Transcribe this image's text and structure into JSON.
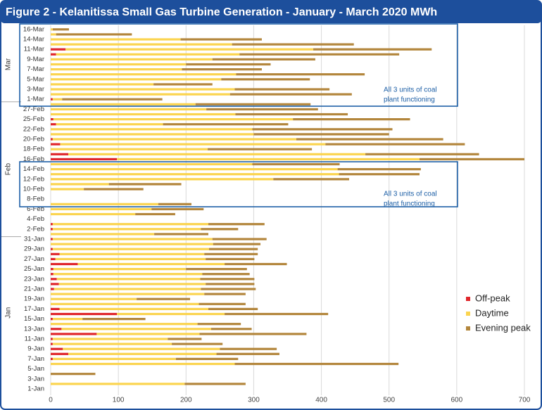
{
  "chart_data": {
    "type": "stacked-hbar",
    "title": "Figure 2 - Kelanitissa Small Gas Turbine Generation - January - March 2020 MWh",
    "categories": [
      "1-Jan",
      null,
      "3-Jan",
      null,
      "5-Jan",
      null,
      "7-Jan",
      null,
      "9-Jan",
      null,
      "11-Jan",
      null,
      "13-Jan",
      null,
      "15-Jan",
      null,
      "17-Jan",
      null,
      "19-Jan",
      null,
      "21-Jan",
      null,
      "23-Jan",
      null,
      "25-Jan",
      null,
      "27-Jan",
      null,
      "29-Jan",
      null,
      "31-Jan",
      null,
      "2-Feb",
      null,
      "4-Feb",
      null,
      "6-Feb",
      null,
      "8-Feb",
      null,
      "10-Feb",
      null,
      "12-Feb",
      null,
      "14-Feb",
      null,
      "16-Feb",
      null,
      "18-Feb",
      null,
      "20-Feb",
      null,
      "22-Feb",
      null,
      "25-Feb",
      null,
      "27-Feb",
      null,
      "1-Mar",
      null,
      "3-Mar",
      null,
      "5-Mar",
      null,
      "7-Mar",
      null,
      "9-Mar",
      null,
      "11-Mar",
      null,
      "14-Mar",
      null,
      "16-Mar"
    ],
    "group_labels": [
      "Jan",
      "Feb",
      "Mar"
    ],
    "series": [
      {
        "name": "Off-peak",
        "color": "#e0262b",
        "values": [
          0,
          0,
          0,
          0,
          0,
          0,
          3,
          26,
          18,
          3,
          3,
          68,
          16,
          0,
          3,
          98,
          13,
          0,
          0,
          0,
          5,
          12,
          9,
          4,
          4,
          40,
          7,
          13,
          3,
          0,
          3,
          0,
          3,
          3,
          0,
          0,
          0,
          0,
          0,
          0,
          0,
          0,
          0,
          0,
          0,
          0,
          98,
          26,
          0,
          14,
          3,
          0,
          0,
          8,
          4,
          0,
          0,
          0,
          3,
          0,
          0,
          0,
          0,
          0,
          0,
          0,
          0,
          8,
          22,
          0,
          0,
          0,
          0
        ]
      },
      {
        "name": "Daytime",
        "color": "#fbd44f",
        "values": [
          0,
          198,
          0,
          0,
          0,
          272,
          182,
          219,
          232,
          176,
          170,
          152,
          221,
          217,
          44,
          159,
          220,
          219,
          127,
          227,
          217,
          217,
          212,
          220,
          196,
          217,
          222,
          214,
          231,
          240,
          236,
          153,
          219,
          230,
          0,
          125,
          149,
          159,
          0,
          0,
          49,
          86,
          329,
          426,
          424,
          298,
          447,
          439,
          232,
          392,
          360,
          300,
          298,
          158,
          354,
          273,
          230,
          214,
          14,
          265,
          272,
          152,
          252,
          274,
          194,
          200,
          239,
          271,
          366,
          268,
          192,
          8,
          3
        ]
      },
      {
        "name": "Evening peak",
        "color": "#b3863c",
        "values": [
          0,
          90,
          0,
          66,
          0,
          242,
          92,
          93,
          84,
          75,
          50,
          158,
          60,
          64,
          93,
          153,
          73,
          69,
          79,
          61,
          81,
          72,
          80,
          70,
          90,
          92,
          72,
          79,
          72,
          70,
          80,
          80,
          55,
          83,
          0,
          59,
          77,
          49,
          0,
          0,
          88,
          107,
          112,
          119,
          123,
          129,
          155,
          168,
          154,
          206,
          217,
          200,
          207,
          185,
          173,
          166,
          165,
          170,
          148,
          180,
          140,
          87,
          131,
          190,
          118,
          125,
          152,
          236,
          175,
          180,
          120,
          112,
          24
        ]
      }
    ],
    "xlim": [
      0,
      700
    ],
    "xticks": [
      0,
      100,
      200,
      300,
      400,
      500,
      600,
      700
    ],
    "grid": true,
    "legend": "right",
    "annotations": [
      {
        "lines": [
          "All 3 units of coal",
          "plant functioning"
        ]
      },
      {
        "lines": [
          "All 3 units of coal",
          "plant functioning"
        ]
      }
    ]
  }
}
